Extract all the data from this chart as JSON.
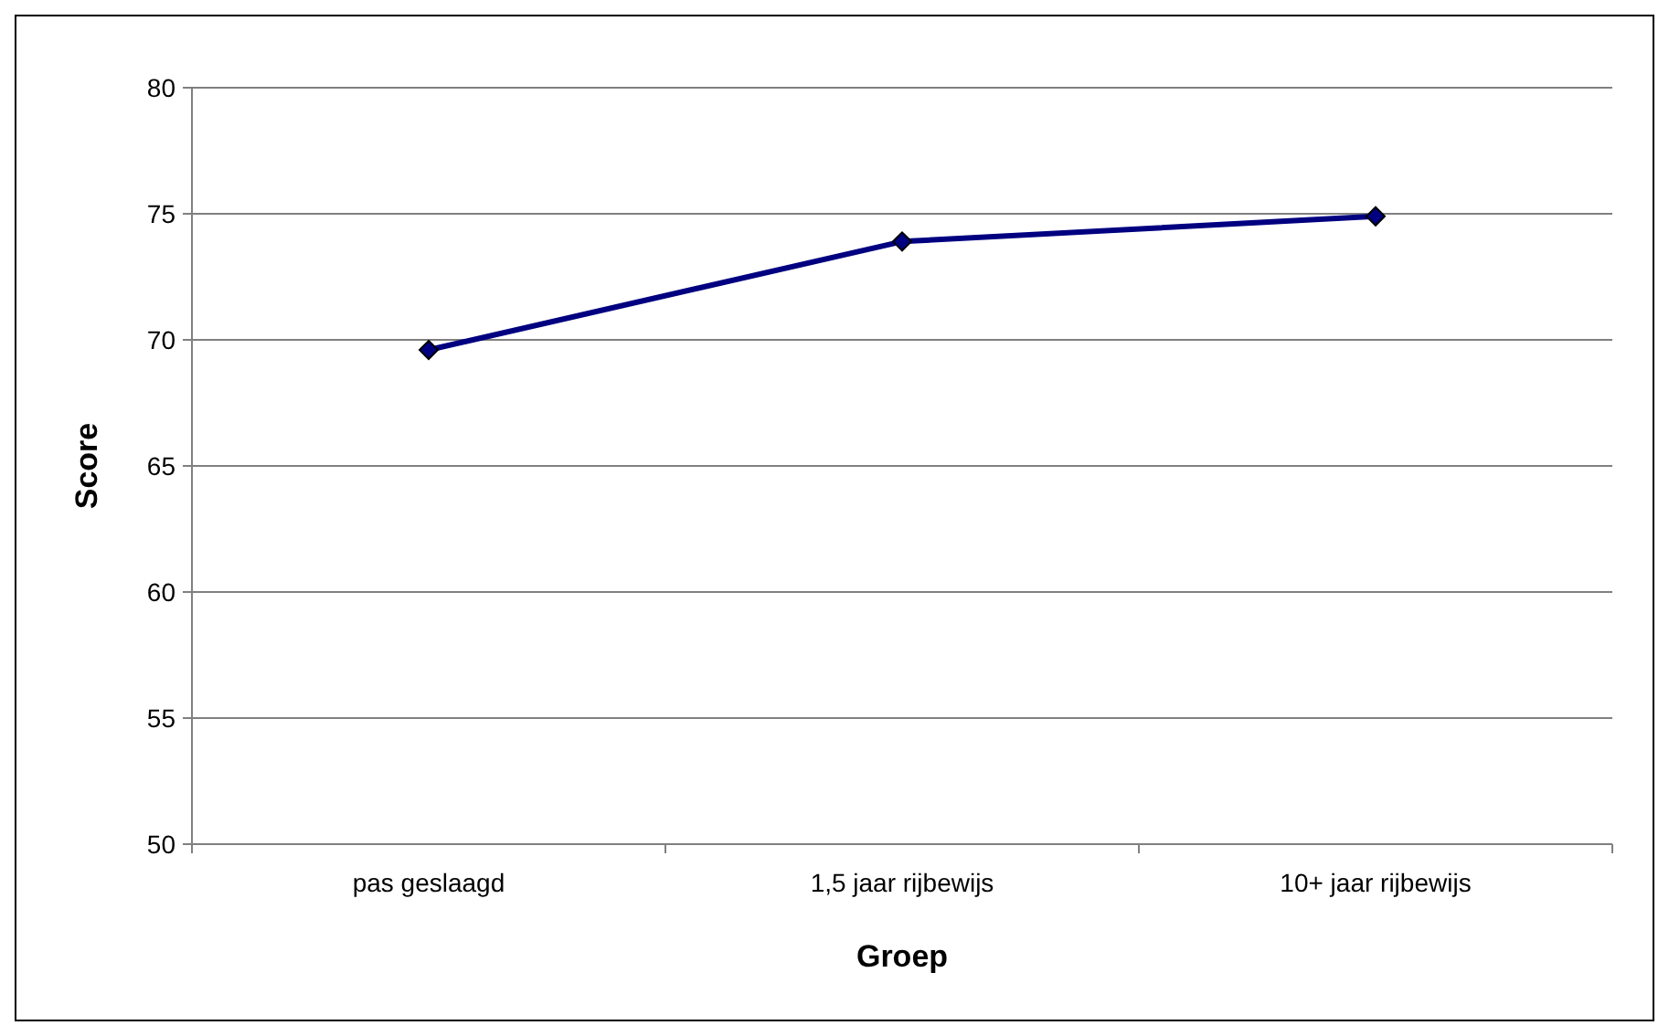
{
  "chart_data": {
    "type": "line",
    "xlabel": "Groep",
    "ylabel": "Score",
    "categories": [
      "pas geslaagd",
      "1,5 jaar rijbewijs",
      "10+ jaar rijbewijs"
    ],
    "series": [
      {
        "color": "#000080",
        "values": [
          69.6,
          73.9,
          74.9
        ]
      }
    ],
    "ylim": [
      50,
      80
    ],
    "yticks": [
      50,
      55,
      60,
      65,
      70,
      75,
      80
    ],
    "grid": "y",
    "marker": "diamond",
    "line_style": "solid"
  }
}
